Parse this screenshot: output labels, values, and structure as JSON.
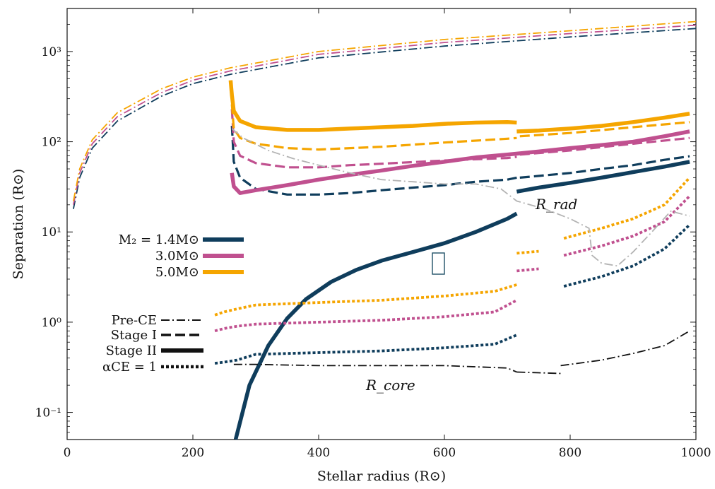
{
  "chart_data": {
    "type": "line",
    "title": "",
    "xlabel": "Stellar radius (R⊙)",
    "ylabel": "Separation (R⊙)",
    "xlim": [
      0,
      1000
    ],
    "ylim": [
      0.05,
      3000
    ],
    "yscale": "log",
    "x_ticks": [
      0,
      200,
      400,
      600,
      800,
      1000
    ],
    "x_tick_labels": [
      "0",
      "200",
      "400",
      "600",
      "800",
      "1000"
    ],
    "y_ticks": [
      0.1,
      1,
      10,
      100,
      1000
    ],
    "y_tick_labels": [
      "10⁻¹",
      "10⁰",
      "10¹",
      "10²",
      "10³"
    ],
    "grid": false,
    "legend_mass": [
      {
        "label": "M₂ = 1.4M⊙",
        "color": "#0f3d5c"
      },
      {
        "label": "3.0M⊙",
        "color": "#c0508f"
      },
      {
        "label": "5.0M⊙",
        "color": "#f5a500"
      }
    ],
    "legend_stage": [
      {
        "label": "Pre-CE",
        "style": "dashdot"
      },
      {
        "label": "Stage I",
        "style": "dashed"
      },
      {
        "label": "Stage II",
        "style": "solid"
      },
      {
        "label": "αCE = 1",
        "style": "dotted"
      }
    ],
    "annotations": [
      {
        "text": "R_rad",
        "x": 800,
        "y": 12
      },
      {
        "text": "R_core",
        "x": 545,
        "y": 0.16
      }
    ],
    "series": [
      {
        "name": "Pre-CE 1.4",
        "color": "#0f3d5c",
        "style": "dashdot",
        "x": [
          10,
          20,
          40,
          80,
          150,
          200,
          260,
          400,
          600,
          800,
          1000
        ],
        "y": [
          18,
          40,
          85,
          170,
          320,
          440,
          560,
          850,
          1150,
          1450,
          1800
        ]
      },
      {
        "name": "Pre-CE 3.0",
        "color": "#c0508f",
        "style": "dashdot",
        "x": [
          10,
          20,
          40,
          80,
          150,
          200,
          260,
          400,
          600,
          800,
          1000
        ],
        "y": [
          20,
          45,
          95,
          190,
          350,
          480,
          610,
          930,
          1260,
          1580,
          1960
        ]
      },
      {
        "name": "Pre-CE 5.0",
        "color": "#f5a500",
        "style": "dashdot",
        "x": [
          10,
          20,
          40,
          80,
          150,
          200,
          260,
          400,
          600,
          800,
          1000
        ],
        "y": [
          22,
          50,
          105,
          210,
          385,
          520,
          660,
          1000,
          1360,
          1700,
          2150
        ]
      },
      {
        "name": "Stage I 1.4",
        "color": "#0f3d5c",
        "style": "dashed",
        "x": [
          262,
          265,
          275,
          300,
          350,
          400,
          450,
          500,
          550,
          600,
          650,
          700,
          715
        ],
        "y": [
          150,
          60,
          40,
          30,
          26,
          26,
          27,
          29,
          31,
          33,
          36,
          38,
          40
        ]
      },
      {
        "name": "Stage I 1.4b",
        "color": "#0f3d5c",
        "style": "dashed",
        "x": [
          720,
          800,
          850,
          900,
          950,
          990
        ],
        "y": [
          40,
          45,
          50,
          55,
          63,
          69
        ]
      },
      {
        "name": "Stage I 3.0",
        "color": "#c0508f",
        "style": "dashed",
        "x": [
          262,
          265,
          275,
          300,
          350,
          400,
          450,
          500,
          600,
          700,
          715
        ],
        "y": [
          230,
          100,
          70,
          58,
          52,
          52,
          55,
          57,
          62,
          66,
          68
        ]
      },
      {
        "name": "Stage I 3.0b",
        "color": "#c0508f",
        "style": "dashed",
        "x": [
          720,
          800,
          900,
          990
        ],
        "y": [
          72,
          80,
          95,
          110
        ]
      },
      {
        "name": "Stage I 5.0",
        "color": "#f5a500",
        "style": "dashed",
        "x": [
          262,
          265,
          275,
          300,
          350,
          400,
          500,
          600,
          700,
          715
        ],
        "y": [
          260,
          140,
          110,
          95,
          85,
          82,
          88,
          98,
          108,
          110
        ]
      },
      {
        "name": "Stage I 5.0b",
        "color": "#f5a500",
        "style": "dashed",
        "x": [
          720,
          800,
          900,
          990
        ],
        "y": [
          115,
          125,
          145,
          165
        ]
      },
      {
        "name": "Stage II 1.4",
        "color": "#0f3d5c",
        "style": "solid",
        "x": [
          268,
          290,
          320,
          350,
          380,
          420,
          460,
          500,
          550,
          600,
          650,
          700,
          715
        ],
        "y": [
          0.05,
          0.2,
          0.55,
          1.1,
          1.8,
          2.8,
          3.8,
          4.8,
          6.0,
          7.5,
          10,
          14,
          16
        ]
      },
      {
        "name": "Stage II 1.4b",
        "color": "#0f3d5c",
        "style": "solid",
        "x": [
          715,
          750,
          800,
          850,
          900,
          950,
          990
        ],
        "y": [
          28,
          31,
          35,
          40,
          46,
          53,
          60
        ]
      },
      {
        "name": "Stage II 3.0",
        "color": "#c0508f",
        "style": "solid",
        "x": [
          262,
          265,
          275,
          300,
          350,
          400,
          450,
          500,
          550,
          600,
          650,
          700,
          750,
          800,
          850,
          900,
          950,
          990
        ],
        "y": [
          45,
          32,
          27,
          29,
          33,
          38,
          43,
          48,
          54,
          60,
          67,
          72,
          78,
          85,
          92,
          100,
          115,
          130
        ]
      },
      {
        "name": "Stage II 5.0",
        "color": "#f5a500",
        "style": "solid",
        "x": [
          260,
          262,
          265,
          275,
          300,
          350,
          400,
          450,
          500,
          550,
          600,
          650,
          700,
          715
        ],
        "y": [
          480,
          330,
          220,
          170,
          145,
          135,
          135,
          140,
          145,
          150,
          158,
          163,
          165,
          163
        ]
      },
      {
        "name": "Stage II 5.0b",
        "color": "#f5a500",
        "style": "solid",
        "x": [
          715,
          750,
          800,
          850,
          900,
          950,
          990
        ],
        "y": [
          130,
          133,
          140,
          150,
          165,
          185,
          205
        ]
      },
      {
        "name": "alpha 1.4a",
        "color": "#0f3d5c",
        "style": "dotted",
        "x": [
          235,
          250,
          270,
          300,
          400,
          500,
          600,
          680,
          715
        ],
        "y": [
          0.35,
          0.36,
          0.38,
          0.44,
          0.46,
          0.48,
          0.52,
          0.57,
          0.72
        ]
      },
      {
        "name": "alpha 1.4b",
        "color": "#0f3d5c",
        "style": "dotted",
        "x": [
          790,
          850,
          900,
          950,
          990
        ],
        "y": [
          2.5,
          3.2,
          4.2,
          6.5,
          12
        ]
      },
      {
        "name": "alpha 3.0a",
        "color": "#c0508f",
        "style": "dotted",
        "x": [
          235,
          250,
          270,
          300,
          400,
          500,
          600,
          680,
          715
        ],
        "y": [
          0.8,
          0.85,
          0.9,
          0.95,
          1.0,
          1.05,
          1.15,
          1.3,
          1.75
        ]
      },
      {
        "name": "alpha 3.0b",
        "color": "#c0508f",
        "style": "dotted",
        "x": [
          715,
          750
        ],
        "y": [
          3.7,
          3.9
        ]
      },
      {
        "name": "alpha 3.0c",
        "color": "#c0508f",
        "style": "dotted",
        "x": [
          790,
          850,
          900,
          950,
          990
        ],
        "y": [
          5.5,
          7,
          9,
          13,
          25
        ]
      },
      {
        "name": "alpha 5.0a",
        "color": "#f5a500",
        "style": "dotted",
        "x": [
          235,
          250,
          270,
          300,
          400,
          500,
          600,
          680,
          715
        ],
        "y": [
          1.2,
          1.3,
          1.4,
          1.55,
          1.65,
          1.75,
          1.95,
          2.2,
          2.6
        ]
      },
      {
        "name": "alpha 5.0b",
        "color": "#f5a500",
        "style": "dotted",
        "x": [
          715,
          750
        ],
        "y": [
          5.8,
          6.1
        ]
      },
      {
        "name": "alpha 5.0c",
        "color": "#f5a500",
        "style": "dotted",
        "x": [
          790,
          850,
          900,
          950,
          990
        ],
        "y": [
          8.5,
          11,
          14,
          20,
          40
        ]
      },
      {
        "name": "R_rad",
        "color": "#b3b3b3",
        "style": "dashdot",
        "x": [
          262,
          280,
          320,
          360,
          400,
          450,
          500,
          550,
          600,
          650,
          690,
          715,
          760,
          800,
          830,
          835,
          850,
          875,
          900,
          930,
          960,
          990
        ],
        "y": [
          140,
          110,
          80,
          65,
          55,
          45,
          38,
          36,
          34,
          34,
          30,
          22,
          18,
          14,
          11,
          5.5,
          4.5,
          4.2,
          6,
          10,
          17,
          15
        ]
      },
      {
        "name": "R_core",
        "color": "#111111",
        "style": "dashdot",
        "x": [
          265,
          300,
          400,
          500,
          600,
          700,
          715
        ],
        "y": [
          0.34,
          0.34,
          0.33,
          0.33,
          0.33,
          0.31,
          0.28
        ]
      },
      {
        "name": "R_core b",
        "color": "#111111",
        "style": "dashdot",
        "x": [
          715,
          785
        ],
        "y": [
          0.28,
          0.27
        ]
      },
      {
        "name": "R_core c",
        "color": "#111111",
        "style": "dashdot",
        "x": [
          785,
          850,
          900,
          950,
          990
        ],
        "y": [
          0.33,
          0.38,
          0.45,
          0.55,
          0.8
        ]
      }
    ]
  }
}
